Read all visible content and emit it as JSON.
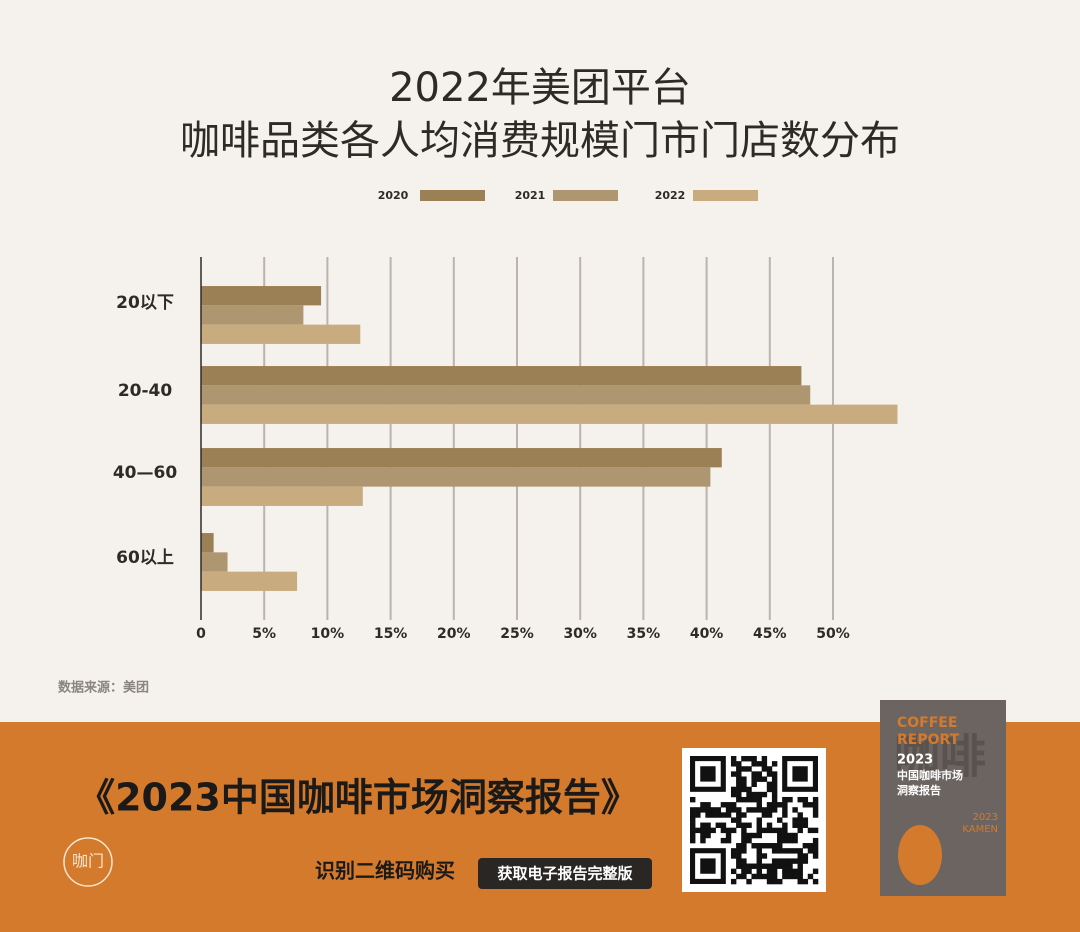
{
  "chart_data": {
    "type": "barh",
    "title": "2022年美团平台",
    "subtitle": "咖啡品类各人均消费规模门市门店数分布",
    "categories": [
      "20以下",
      "20-40",
      "40—60",
      "60以上"
    ],
    "series": [
      {
        "name": "2020",
        "color": "#9b7f55",
        "values": [
          9.5,
          47.5,
          41.2,
          1.0
        ]
      },
      {
        "name": "2021",
        "color": "#ad9670",
        "values": [
          8.1,
          48.2,
          40.3,
          2.1
        ]
      },
      {
        "name": "2022",
        "color": "#c9ab80",
        "values": [
          12.6,
          55.1,
          12.8,
          7.6
        ]
      }
    ],
    "xlim": [
      0,
      55.5
    ],
    "xticks": [
      0,
      {
        "value": 5,
        "label": "5%"
      },
      {
        "value": 10,
        "label": "10%"
      },
      {
        "value": 15,
        "label": "15%"
      },
      {
        "value": 20,
        "label": "20%"
      },
      {
        "value": 25,
        "label": "25%"
      },
      {
        "value": 30,
        "label": "30%"
      },
      {
        "value": 35,
        "label": "35%"
      },
      {
        "value": 40,
        "label": "40%"
      },
      {
        "value": 45,
        "label": "45%"
      },
      {
        "value": 50,
        "label": "50%"
      }
    ],
    "grid": true,
    "source": "数据来源：美团"
  },
  "banner": {
    "title": "《2023中国咖啡市场洞察报告》",
    "cta": "识别二维码购买",
    "button": "获取电子报告完整版",
    "logo": "咖门",
    "book": {
      "line1": "COFFEE",
      "line2": "REPORT",
      "year": "2023",
      "title1": "中国咖啡市场",
      "title2": "洞察报告",
      "big": "咖啡",
      "brand_year": "2023",
      "brand": "KAMEN"
    }
  }
}
